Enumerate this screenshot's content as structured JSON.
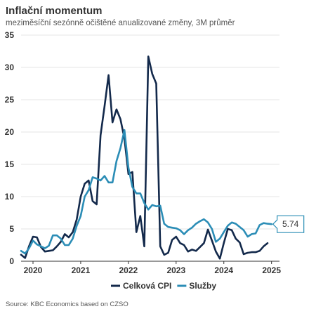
{
  "title": "Inflační momentum",
  "subtitle": "meziměsíční sezónně očištěné anualizované změny, 3M průměr",
  "source": "Source: KBC Economics based on CZSO",
  "colors": {
    "celkova": "#13294b",
    "sluzby": "#2b8db6",
    "grid": "#e6e6e6",
    "axis": "#333333"
  },
  "chart_data": {
    "type": "line",
    "ylim": [
      0,
      35
    ],
    "yticks": [
      0,
      5,
      10,
      15,
      20,
      25,
      30,
      35
    ],
    "xlim": [
      "2019-10",
      "2025-03"
    ],
    "xticks": [
      "2020",
      "2021",
      "2022",
      "2023",
      "2024",
      "2025"
    ],
    "grid": true,
    "legend_position": "bottom",
    "series": [
      {
        "name": "Celková CPI",
        "color": "#13294b",
        "x": [
          "2019-10",
          "2019-11",
          "2019-12",
          "2020-01",
          "2020-02",
          "2020-03",
          "2020-04",
          "2020-05",
          "2020-06",
          "2020-07",
          "2020-08",
          "2020-09",
          "2020-10",
          "2020-11",
          "2020-12",
          "2021-01",
          "2021-02",
          "2021-03",
          "2021-04",
          "2021-05",
          "2021-06",
          "2021-07",
          "2021-08",
          "2021-09",
          "2021-10",
          "2021-11",
          "2021-12",
          "2022-01",
          "2022-02",
          "2022-03",
          "2022-04",
          "2022-05",
          "2022-06",
          "2022-07",
          "2022-08",
          "2022-09",
          "2022-10",
          "2022-11",
          "2022-12",
          "2023-01",
          "2023-02",
          "2023-03",
          "2023-04",
          "2023-05",
          "2023-06",
          "2023-07",
          "2023-08",
          "2023-09",
          "2023-10",
          "2023-11",
          "2023-12",
          "2024-01",
          "2024-02",
          "2024-03",
          "2024-04",
          "2024-05",
          "2024-06",
          "2024-07",
          "2024-08",
          "2024-09",
          "2024-10",
          "2024-11",
          "2024-12",
          "2025-01"
        ],
        "values": [
          1.0,
          0.5,
          2.3,
          3.8,
          3.7,
          2.2,
          1.5,
          1.6,
          1.7,
          2.3,
          3.0,
          4.2,
          3.7,
          4.5,
          6.5,
          10.0,
          12.0,
          12.5,
          9.3,
          8.8,
          19.5,
          24.0,
          28.8,
          21.5,
          23.5,
          22.0,
          19.0,
          13.5,
          13.8,
          4.5,
          7.0,
          2.3,
          31.7,
          29.0,
          27.5,
          2.3,
          1.0,
          1.3,
          3.3,
          3.8,
          2.8,
          2.5,
          1.5,
          1.8,
          1.6,
          2.2,
          2.8,
          4.9,
          3.2,
          1.5,
          0.4,
          2.8,
          5.0,
          4.8,
          3.5,
          2.9,
          1.1,
          1.3,
          1.4,
          1.4,
          1.6,
          2.3,
          2.8,
          null
        ]
      },
      {
        "name": "Služby",
        "color": "#2b8db6",
        "x": [
          "2019-10",
          "2019-11",
          "2019-12",
          "2020-01",
          "2020-02",
          "2020-03",
          "2020-04",
          "2020-05",
          "2020-06",
          "2020-07",
          "2020-08",
          "2020-09",
          "2020-10",
          "2020-11",
          "2020-12",
          "2021-01",
          "2021-02",
          "2021-03",
          "2021-04",
          "2021-05",
          "2021-06",
          "2021-07",
          "2021-08",
          "2021-09",
          "2021-10",
          "2021-11",
          "2021-12",
          "2022-01",
          "2022-02",
          "2022-03",
          "2022-04",
          "2022-05",
          "2022-06",
          "2022-07",
          "2022-08",
          "2022-09",
          "2022-10",
          "2022-11",
          "2022-12",
          "2023-01",
          "2023-02",
          "2023-03",
          "2023-04",
          "2023-05",
          "2023-06",
          "2023-07",
          "2023-08",
          "2023-09",
          "2023-10",
          "2023-11",
          "2023-12",
          "2024-01",
          "2024-02",
          "2024-03",
          "2024-04",
          "2024-05",
          "2024-06",
          "2024-07",
          "2024-08",
          "2024-09",
          "2024-10",
          "2024-11",
          "2024-12",
          "2025-01"
        ],
        "values": [
          1.6,
          1.2,
          2.0,
          3.2,
          2.6,
          2.3,
          2.0,
          2.4,
          4.0,
          4.0,
          3.5,
          2.5,
          2.5,
          3.5,
          5.5,
          7.0,
          10.0,
          11.0,
          13.0,
          12.8,
          12.5,
          13.2,
          12.2,
          12.2,
          15.5,
          17.5,
          20.3,
          14.5,
          11.5,
          10.5,
          10.5,
          9.0,
          8.0,
          8.7,
          8.5,
          8.6,
          5.8,
          5.3,
          5.2,
          5.1,
          4.8,
          4.2,
          4.8,
          5.2,
          5.8,
          6.2,
          6.5,
          6.0,
          5.0,
          3.0,
          3.5,
          4.5,
          5.5,
          6.0,
          5.8,
          5.3,
          4.8,
          3.8,
          4.2,
          4.3,
          5.6,
          5.9,
          5.8,
          5.74
        ]
      }
    ],
    "end_label": {
      "series": "Služby",
      "text": "5.74"
    }
  }
}
